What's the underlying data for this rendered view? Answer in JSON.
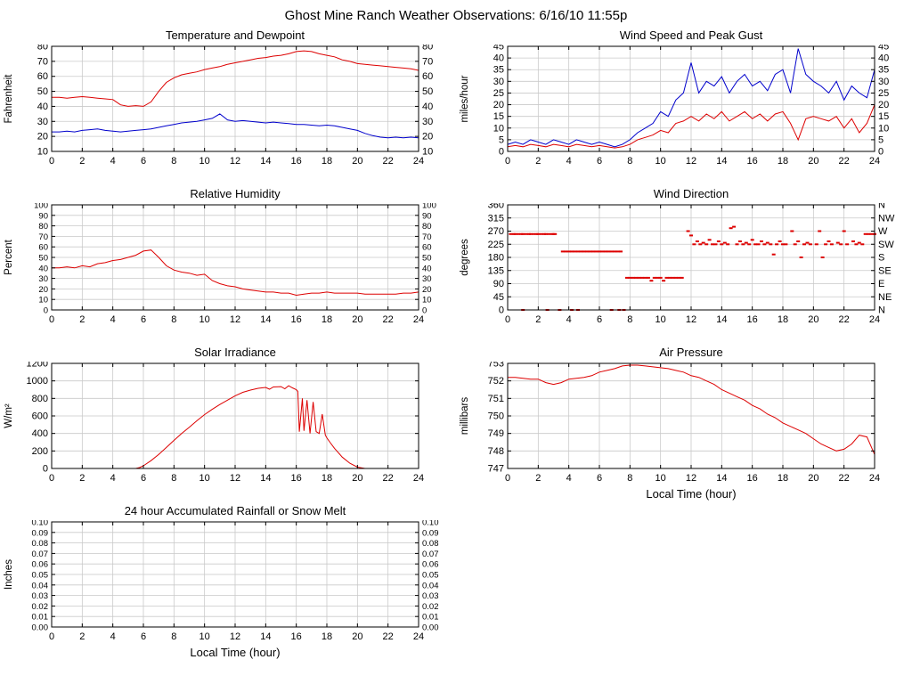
{
  "page_title": "Ghost Mine Ranch Weather Observations: 6/16/10 11:55p",
  "x_axis_label": "Local Time (hour)",
  "colors": {
    "series_red": "#dd0000",
    "series_blue": "#0000cc",
    "grid": "#c9c9c9",
    "axis": "#000000",
    "background": "#ffffff"
  },
  "x_axis": {
    "min": 0,
    "max": 24,
    "ticks": [
      0,
      2,
      4,
      6,
      8,
      10,
      12,
      14,
      16,
      18,
      20,
      22,
      24
    ]
  },
  "chart_data": [
    {
      "title": "Temperature and Dewpoint",
      "type": "line",
      "ylabel": "Fahrenheit",
      "ylim": [
        10,
        80
      ],
      "yticks": [
        10,
        20,
        30,
        40,
        50,
        60,
        70,
        80
      ],
      "right_tick_labels": "same",
      "xlabel": "",
      "series": [
        {
          "name": "temperature",
          "color": "red",
          "x_start": 0,
          "x_step": 0.5,
          "y": [
            46,
            46,
            45.5,
            46,
            46.5,
            46,
            45.5,
            45,
            44.5,
            41,
            40,
            40.5,
            40,
            43,
            50,
            56,
            59,
            61,
            62,
            63,
            64.5,
            65.5,
            66.5,
            68,
            69,
            70,
            71,
            72,
            72.5,
            73.5,
            74,
            75,
            76.5,
            77,
            76.5,
            75,
            74,
            73,
            71,
            70,
            68.5,
            68,
            67.5,
            67,
            66.5,
            66,
            65.5,
            65,
            64
          ]
        },
        {
          "name": "dewpoint",
          "color": "blue",
          "x_start": 0,
          "x_step": 0.5,
          "y": [
            23,
            23,
            23.5,
            23,
            24,
            24.5,
            25,
            24,
            23.5,
            23,
            23.5,
            24,
            24.5,
            25,
            26,
            27,
            28,
            29,
            29.5,
            30,
            31,
            32,
            35,
            31,
            30,
            30.5,
            30,
            29.5,
            29,
            29.5,
            29,
            28.5,
            28,
            28,
            27.5,
            27,
            27.5,
            27,
            26,
            25,
            24,
            22,
            20.5,
            19.5,
            19,
            19.5,
            19,
            19.5,
            19
          ]
        }
      ]
    },
    {
      "title": "Wind Speed and Peak Gust",
      "type": "line",
      "ylabel": "miles/hour",
      "ylim": [
        0,
        45
      ],
      "yticks": [
        0,
        5,
        10,
        15,
        20,
        25,
        30,
        35,
        40,
        45
      ],
      "right_tick_labels": "same",
      "xlabel": "",
      "series": [
        {
          "name": "peak-gust",
          "color": "blue",
          "x_start": 0,
          "x_step": 0.5,
          "y": [
            3,
            4,
            3,
            5,
            4,
            3,
            5,
            4,
            3,
            5,
            4,
            3,
            4,
            3,
            2,
            3,
            5,
            8,
            10,
            12,
            17,
            15,
            22,
            25,
            38,
            25,
            30,
            28,
            32,
            25,
            30,
            33,
            28,
            30,
            26,
            33,
            35,
            25,
            44,
            33,
            30,
            28,
            25,
            30,
            22,
            28,
            25,
            23,
            35
          ]
        },
        {
          "name": "wind-speed",
          "color": "red",
          "x_start": 0,
          "x_step": 0.5,
          "y": [
            2,
            2.5,
            2,
            3,
            2.5,
            2,
            3,
            2.5,
            2,
            3,
            2.5,
            2,
            2.5,
            2,
            1.5,
            2,
            3,
            5,
            6,
            7,
            9,
            8,
            12,
            13,
            15,
            13,
            16,
            14,
            17,
            13,
            15,
            17,
            14,
            16,
            13,
            16,
            17,
            12,
            5,
            14,
            15,
            14,
            13,
            15,
            10,
            14,
            8,
            12,
            20
          ]
        }
      ]
    },
    {
      "title": "Relative Humidity",
      "type": "line",
      "ylabel": "Percent",
      "ylim": [
        0,
        100
      ],
      "yticks": [
        0,
        10,
        20,
        30,
        40,
        50,
        60,
        70,
        80,
        90,
        100
      ],
      "right_tick_labels": "same",
      "xlabel": "",
      "series": [
        {
          "name": "relative-humidity",
          "color": "red",
          "x_start": 0,
          "x_step": 0.5,
          "y": [
            40,
            40,
            41,
            40,
            42,
            41,
            44,
            45,
            47,
            48,
            50,
            52,
            56,
            57,
            50,
            42,
            38,
            36,
            35,
            33,
            34,
            28,
            25,
            23,
            22,
            20,
            19,
            18,
            17,
            17,
            16,
            16,
            14,
            15,
            16,
            16,
            17,
            16,
            16,
            16,
            16,
            15,
            15,
            15,
            15,
            15,
            16,
            16,
            17
          ]
        }
      ]
    },
    {
      "title": "Wind Direction",
      "type": "scatter",
      "ylabel": "degrees",
      "ylim": [
        0,
        360
      ],
      "yticks": [
        0,
        45,
        90,
        135,
        180,
        225,
        270,
        315,
        360
      ],
      "right_tick_labels": [
        "N",
        "NE",
        "E",
        "SE",
        "S",
        "SW",
        "W",
        "NW",
        "N"
      ],
      "xlabel": "",
      "series": [
        {
          "name": "wind-direction",
          "color": "red",
          "points": [
            [
              0.2,
              260
            ],
            [
              0.4,
              260
            ],
            [
              0.5,
              260
            ],
            [
              0.7,
              260
            ],
            [
              0.9,
              260
            ],
            [
              1.0,
              260
            ],
            [
              1.2,
              260
            ],
            [
              1.4,
              260
            ],
            [
              1.5,
              260
            ],
            [
              1.7,
              260
            ],
            [
              1.9,
              260
            ],
            [
              2.0,
              260
            ],
            [
              2.2,
              260
            ],
            [
              2.4,
              260
            ],
            [
              2.5,
              260
            ],
            [
              2.7,
              260
            ],
            [
              2.9,
              260
            ],
            [
              3.0,
              260
            ],
            [
              3.1,
              260
            ],
            [
              3.6,
              200
            ],
            [
              3.8,
              200
            ],
            [
              4.0,
              200
            ],
            [
              4.2,
              200
            ],
            [
              4.4,
              200
            ],
            [
              4.6,
              200
            ],
            [
              4.8,
              200
            ],
            [
              5.0,
              200
            ],
            [
              5.2,
              200
            ],
            [
              5.4,
              200
            ],
            [
              5.6,
              200
            ],
            [
              5.8,
              200
            ],
            [
              6.0,
              200
            ],
            [
              6.2,
              200
            ],
            [
              6.4,
              200
            ],
            [
              6.6,
              200
            ],
            [
              6.8,
              200
            ],
            [
              7.0,
              200
            ],
            [
              7.2,
              200
            ],
            [
              7.4,
              200
            ],
            [
              1.0,
              0
            ],
            [
              2.6,
              0
            ],
            [
              3.4,
              0
            ],
            [
              4.2,
              0
            ],
            [
              4.6,
              0
            ],
            [
              6.8,
              0
            ],
            [
              7.3,
              0
            ],
            [
              7.6,
              0
            ],
            [
              7.8,
              110
            ],
            [
              8.0,
              110
            ],
            [
              8.2,
              110
            ],
            [
              8.4,
              110
            ],
            [
              8.6,
              110
            ],
            [
              8.8,
              110
            ],
            [
              9.0,
              110
            ],
            [
              9.2,
              110
            ],
            [
              9.4,
              100
            ],
            [
              9.6,
              110
            ],
            [
              9.8,
              110
            ],
            [
              10.0,
              110
            ],
            [
              10.2,
              100
            ],
            [
              10.4,
              110
            ],
            [
              10.6,
              110
            ],
            [
              10.8,
              110
            ],
            [
              11.0,
              110
            ],
            [
              11.2,
              110
            ],
            [
              11.4,
              110
            ],
            [
              11.8,
              270
            ],
            [
              12.0,
              255
            ],
            [
              12.2,
              225
            ],
            [
              12.4,
              235
            ],
            [
              12.6,
              225
            ],
            [
              12.8,
              230
            ],
            [
              13.0,
              225
            ],
            [
              13.2,
              240
            ],
            [
              13.4,
              225
            ],
            [
              13.6,
              225
            ],
            [
              13.8,
              235
            ],
            [
              14.0,
              225
            ],
            [
              14.2,
              230
            ],
            [
              14.4,
              225
            ],
            [
              14.6,
              280
            ],
            [
              14.8,
              285
            ],
            [
              15.0,
              225
            ],
            [
              15.2,
              235
            ],
            [
              15.4,
              225
            ],
            [
              15.6,
              230
            ],
            [
              15.8,
              225
            ],
            [
              16.0,
              240
            ],
            [
              16.2,
              225
            ],
            [
              16.4,
              225
            ],
            [
              16.6,
              235
            ],
            [
              16.8,
              225
            ],
            [
              17.0,
              230
            ],
            [
              17.2,
              225
            ],
            [
              17.4,
              190
            ],
            [
              17.6,
              225
            ],
            [
              17.8,
              235
            ],
            [
              18.0,
              225
            ],
            [
              18.2,
              225
            ],
            [
              18.6,
              270
            ],
            [
              18.8,
              225
            ],
            [
              19.0,
              235
            ],
            [
              19.2,
              180
            ],
            [
              19.4,
              225
            ],
            [
              19.6,
              230
            ],
            [
              19.8,
              225
            ],
            [
              20.2,
              225
            ],
            [
              20.4,
              270
            ],
            [
              20.6,
              180
            ],
            [
              20.8,
              225
            ],
            [
              21.0,
              235
            ],
            [
              21.2,
              225
            ],
            [
              21.6,
              230
            ],
            [
              21.8,
              225
            ],
            [
              22.0,
              270
            ],
            [
              22.2,
              225
            ],
            [
              22.6,
              235
            ],
            [
              22.8,
              225
            ],
            [
              23.0,
              230
            ],
            [
              23.2,
              225
            ],
            [
              23.4,
              260
            ],
            [
              23.6,
              260
            ],
            [
              23.8,
              260
            ],
            [
              24.0,
              260
            ]
          ]
        }
      ]
    },
    {
      "title": "Solar Irradiance",
      "type": "line",
      "ylabel": "W/m²",
      "ylim": [
        0,
        1200
      ],
      "yticks": [
        0,
        200,
        400,
        600,
        800,
        1000,
        1200
      ],
      "right_tick_labels": "none",
      "xlabel": "",
      "series": [
        {
          "name": "solar-irradiance",
          "color": "red",
          "x": [
            0,
            5.5,
            5.75,
            6,
            6.5,
            7,
            7.5,
            8,
            8.5,
            9,
            9.5,
            10,
            10.5,
            11,
            11.5,
            12,
            12.5,
            13,
            13.5,
            14,
            14.25,
            14.5,
            15,
            15.25,
            15.5,
            15.75,
            16,
            16.1,
            16.2,
            16.4,
            16.5,
            16.7,
            16.9,
            17.1,
            17.3,
            17.5,
            17.7,
            17.9,
            18,
            18.2,
            18.5,
            19,
            19.5,
            20,
            20.5,
            24
          ],
          "y": [
            0,
            0,
            10,
            30,
            90,
            160,
            240,
            320,
            400,
            470,
            545,
            615,
            675,
            730,
            780,
            830,
            870,
            895,
            915,
            925,
            905,
            930,
            935,
            910,
            945,
            920,
            900,
            880,
            420,
            800,
            430,
            780,
            400,
            760,
            420,
            400,
            620,
            380,
            350,
            300,
            230,
            130,
            60,
            15,
            0,
            0
          ]
        }
      ]
    },
    {
      "title": "Air Pressure",
      "type": "line",
      "ylabel": "millibars",
      "ylim": [
        747,
        753
      ],
      "yticks": [
        747,
        748,
        749,
        750,
        751,
        752,
        753
      ],
      "right_tick_labels": "none",
      "xlabel": "Local Time (hour)",
      "series": [
        {
          "name": "air-pressure",
          "color": "red",
          "x_start": 0,
          "x_step": 0.5,
          "y": [
            752.2,
            752.2,
            752.15,
            752.1,
            752.1,
            751.9,
            751.8,
            751.9,
            752.1,
            752.15,
            752.2,
            752.3,
            752.5,
            752.6,
            752.7,
            752.85,
            752.9,
            752.9,
            752.85,
            752.8,
            752.75,
            752.7,
            752.6,
            752.5,
            752.3,
            752.2,
            752.0,
            751.8,
            751.5,
            751.3,
            751.1,
            750.9,
            750.6,
            750.4,
            750.1,
            749.9,
            749.6,
            749.4,
            749.2,
            749.0,
            748.7,
            748.4,
            748.2,
            748.0,
            748.1,
            748.4,
            748.9,
            748.8,
            747.8
          ]
        }
      ]
    },
    {
      "title": "24 hour Accumulated Rainfall or Snow Melt",
      "type": "line",
      "ylabel": "Inches",
      "ylim": [
        0,
        0.1
      ],
      "yticks": [
        0,
        0.01,
        0.02,
        0.03,
        0.04,
        0.05,
        0.06,
        0.07,
        0.08,
        0.09,
        0.1
      ],
      "ytick_labels": [
        "0.00",
        "0.01",
        "0.02",
        "0.03",
        "0.04",
        "0.05",
        "0.06",
        "0.07",
        "0.08",
        "0.09",
        "0.10"
      ],
      "right_tick_labels": "same",
      "xlabel": "Local Time (hour)",
      "series": [
        {
          "name": "rainfall",
          "color": "red",
          "x": [
            0,
            24
          ],
          "y": [
            0,
            0
          ]
        }
      ]
    }
  ]
}
